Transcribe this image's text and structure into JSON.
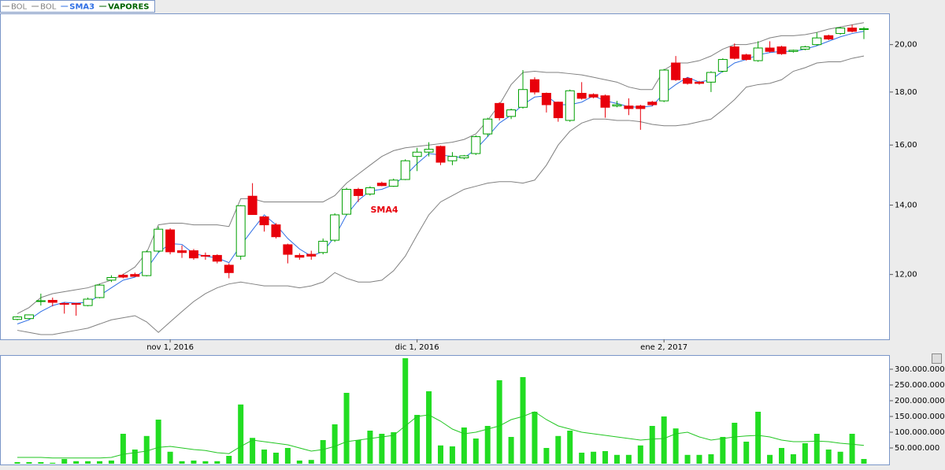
{
  "chart_data": [
    {
      "type": "candlestick",
      "name": "VAPORES",
      "color": "#00a000",
      "down_color": "#e8000b",
      "log_scale": true,
      "annotation": "SMA4",
      "categories": [
        null,
        null,
        null,
        null,
        null,
        null,
        null,
        null,
        null,
        null,
        null,
        null,
        null,
        "nov 1, 2016",
        null,
        null,
        null,
        null,
        null,
        null,
        null,
        null,
        null,
        null,
        null,
        null,
        null,
        null,
        null,
        null,
        null,
        null,
        null,
        null,
        "dic 1, 2016",
        null,
        null,
        null,
        null,
        null,
        null,
        null,
        null,
        null,
        null,
        null,
        null,
        null,
        null,
        null,
        null,
        null,
        null,
        null,
        null,
        "ene 2, 2017",
        null,
        null,
        null,
        null,
        null,
        null,
        null,
        null,
        null,
        null,
        null,
        null,
        null,
        null,
        null,
        null,
        null
      ],
      "open": [
        10.86,
        10.88,
        11.3,
        11.33,
        11.25,
        11.25,
        11.2,
        11.4,
        11.85,
        11.98,
        12.0,
        11.97,
        12.64,
        13.25,
        12.65,
        12.65,
        12.52,
        12.52,
        12.25,
        12.5,
        14.28,
        13.64,
        13.4,
        12.82,
        12.52,
        12.55,
        12.6,
        12.95,
        13.72,
        14.5,
        14.35,
        14.7,
        14.6,
        14.82,
        15.6,
        15.75,
        15.95,
        15.45,
        15.55,
        15.7,
        16.4,
        17.55,
        17.05,
        17.4,
        18.5,
        17.95,
        17.6,
        16.9,
        17.95,
        17.9,
        17.85,
        17.45,
        17.45,
        17.45,
        17.6,
        17.65,
        19.2,
        18.55,
        18.4,
        18.4,
        18.85,
        19.9,
        19.55,
        19.3,
        19.85,
        19.9,
        19.7,
        19.8,
        20.0,
        20.4,
        20.5,
        20.75,
        20.7
      ],
      "high": [
        10.94,
        10.98,
        11.5,
        11.4,
        11.28,
        11.27,
        11.4,
        11.75,
        11.98,
        12.02,
        12.05,
        12.66,
        13.35,
        13.3,
        12.8,
        12.7,
        12.6,
        12.55,
        12.3,
        14.0,
        14.7,
        13.65,
        13.45,
        12.85,
        12.58,
        12.65,
        13.0,
        13.75,
        14.55,
        14.55,
        14.6,
        14.75,
        14.85,
        15.5,
        15.9,
        16.1,
        15.98,
        15.75,
        15.65,
        16.35,
        17.0,
        17.6,
        17.35,
        18.9,
        18.6,
        17.98,
        17.62,
        18.1,
        18.4,
        17.95,
        17.9,
        17.65,
        17.75,
        17.5,
        17.65,
        18.95,
        19.5,
        18.6,
        18.45,
        18.85,
        19.4,
        20.05,
        19.6,
        20.15,
        20.15,
        19.95,
        19.78,
        19.95,
        20.55,
        20.45,
        20.8,
        20.9,
        20.8
      ],
      "low": [
        10.84,
        10.86,
        11.2,
        11.18,
        11.0,
        10.95,
        11.18,
        11.38,
        11.8,
        11.9,
        11.94,
        11.95,
        12.6,
        12.55,
        12.45,
        12.4,
        12.4,
        12.3,
        11.9,
        12.4,
        13.7,
        13.2,
        13.0,
        12.3,
        12.4,
        12.4,
        12.55,
        12.9,
        13.68,
        14.1,
        14.3,
        14.6,
        14.58,
        14.8,
        15.1,
        15.6,
        15.3,
        15.3,
        15.5,
        15.65,
        16.3,
        16.9,
        16.95,
        17.35,
        17.9,
        17.2,
        16.85,
        16.85,
        17.7,
        17.75,
        17.0,
        17.4,
        17.1,
        16.55,
        17.45,
        17.6,
        18.45,
        18.3,
        18.3,
        18.0,
        18.8,
        19.35,
        19.3,
        19.25,
        19.65,
        19.55,
        19.65,
        19.75,
        19.95,
        20.2,
        20.45,
        20.55,
        20.25
      ],
      "close": [
        10.92,
        10.97,
        11.32,
        11.28,
        11.24,
        11.23,
        11.36,
        11.72,
        11.92,
        11.93,
        11.95,
        12.62,
        13.27,
        12.62,
        12.6,
        12.45,
        12.51,
        12.36,
        12.05,
        13.98,
        13.71,
        13.4,
        13.05,
        12.55,
        12.47,
        12.5,
        12.92,
        13.7,
        14.5,
        14.3,
        14.55,
        14.62,
        14.8,
        15.45,
        15.75,
        15.85,
        15.4,
        15.6,
        15.62,
        16.3,
        16.95,
        17.0,
        17.3,
        18.1,
        18.0,
        17.5,
        17.0,
        18.05,
        17.75,
        17.8,
        17.4,
        17.5,
        17.35,
        17.35,
        17.5,
        18.9,
        18.5,
        18.35,
        18.35,
        18.8,
        19.35,
        19.4,
        19.35,
        19.85,
        19.7,
        19.6,
        19.75,
        19.9,
        20.3,
        20.25,
        20.75,
        20.6,
        20.72
      ],
      "series": [
        {
          "name": "BOL",
          "color": "#808080",
          "values": [
            11.0,
            11.15,
            11.4,
            11.5,
            11.55,
            11.6,
            11.65,
            11.75,
            11.85,
            12.0,
            12.2,
            12.6,
            13.4,
            13.45,
            13.45,
            13.4,
            13.4,
            13.4,
            13.35,
            14.2,
            14.2,
            14.1,
            14.1,
            14.1,
            14.1,
            14.1,
            14.1,
            14.3,
            14.7,
            15.0,
            15.3,
            15.6,
            15.8,
            15.9,
            15.95,
            16.0,
            16.05,
            16.1,
            16.2,
            16.4,
            16.9,
            17.5,
            18.3,
            18.8,
            18.85,
            18.8,
            18.8,
            18.75,
            18.7,
            18.6,
            18.5,
            18.4,
            18.2,
            18.1,
            18.1,
            18.9,
            19.2,
            19.2,
            19.3,
            19.5,
            19.8,
            20.0,
            20.0,
            20.1,
            20.3,
            20.4,
            20.4,
            20.45,
            20.55,
            20.7,
            20.8,
            20.9,
            21.0
          ]
        },
        {
          "name": "BOL",
          "color": "#808080",
          "values": [
            10.6,
            10.55,
            10.5,
            10.5,
            10.55,
            10.6,
            10.65,
            10.75,
            10.85,
            10.9,
            10.95,
            10.8,
            10.55,
            10.8,
            11.05,
            11.3,
            11.5,
            11.65,
            11.75,
            11.8,
            11.75,
            11.7,
            11.7,
            11.7,
            11.65,
            11.7,
            11.8,
            12.05,
            11.9,
            11.8,
            11.8,
            11.85,
            12.1,
            12.5,
            13.1,
            13.7,
            14.1,
            14.3,
            14.5,
            14.6,
            14.7,
            14.75,
            14.75,
            14.7,
            14.8,
            15.3,
            16.0,
            16.5,
            16.8,
            16.95,
            16.95,
            16.9,
            16.9,
            16.85,
            16.75,
            16.7,
            16.7,
            16.75,
            16.85,
            16.95,
            17.3,
            17.7,
            18.2,
            18.3,
            18.35,
            18.5,
            18.85,
            19.0,
            19.2,
            19.25,
            19.25,
            19.4,
            19.5
          ]
        },
        {
          "name": "SMA3",
          "color": "#2f6fe4",
          "values": [
            10.75,
            10.85,
            11.05,
            11.2,
            11.28,
            11.26,
            11.28,
            11.45,
            11.65,
            11.85,
            11.93,
            12.15,
            12.6,
            12.85,
            12.83,
            12.57,
            12.5,
            12.45,
            12.32,
            12.8,
            13.25,
            13.7,
            13.4,
            13.0,
            12.7,
            12.5,
            12.63,
            13.05,
            13.7,
            14.15,
            14.45,
            14.5,
            14.65,
            14.95,
            15.35,
            15.7,
            15.65,
            15.6,
            15.55,
            15.85,
            16.3,
            16.8,
            17.1,
            17.5,
            17.8,
            17.85,
            17.5,
            17.5,
            17.6,
            17.85,
            17.65,
            17.55,
            17.42,
            17.4,
            17.45,
            17.95,
            18.3,
            18.6,
            18.4,
            18.5,
            18.85,
            19.2,
            19.35,
            19.55,
            19.65,
            19.7,
            19.7,
            19.8,
            19.95,
            20.15,
            20.35,
            20.5,
            20.6
          ]
        }
      ],
      "ylim": [
        10.39,
        21.4
      ],
      "yticks": [
        {
          "value": 12,
          "label": "12,00"
        },
        {
          "value": 14,
          "label": "14,00"
        },
        {
          "value": 16,
          "label": "16,00"
        },
        {
          "value": 18,
          "label": "18,00"
        },
        {
          "value": 20,
          "label": "20,00"
        }
      ]
    },
    {
      "type": "bar",
      "color": "#22dd22",
      "values": [
        5000000,
        5000000,
        5000000,
        3000000,
        15000000,
        8000000,
        8000000,
        8000000,
        10000000,
        95000000,
        45000000,
        88000000,
        140000000,
        38000000,
        8000000,
        10000000,
        8000000,
        8000000,
        25000000,
        188000000,
        82000000,
        45000000,
        35000000,
        50000000,
        10000000,
        12000000,
        75000000,
        125000000,
        225000000,
        75000000,
        105000000,
        95000000,
        100000000,
        335000000,
        155000000,
        230000000,
        58000000,
        55000000,
        115000000,
        80000000,
        120000000,
        265000000,
        85000000,
        275000000,
        165000000,
        50000000,
        88000000,
        105000000,
        35000000,
        38000000,
        40000000,
        28000000,
        28000000,
        58000000,
        120000000,
        150000000,
        112000000,
        28000000,
        28000000,
        30000000,
        85000000,
        130000000,
        70000000,
        165000000,
        28000000,
        50000000,
        30000000,
        65000000,
        95000000,
        45000000,
        38000000,
        95000000,
        15000000
      ],
      "series": [
        {
          "color": "#22c622",
          "values": [
            20000000,
            20000000,
            20000000,
            18000000,
            18000000,
            18000000,
            18000000,
            18000000,
            20000000,
            30000000,
            35000000,
            40000000,
            52000000,
            55000000,
            50000000,
            45000000,
            42000000,
            35000000,
            32000000,
            55000000,
            75000000,
            70000000,
            65000000,
            60000000,
            50000000,
            40000000,
            45000000,
            55000000,
            70000000,
            75000000,
            80000000,
            85000000,
            90000000,
            120000000,
            150000000,
            155000000,
            135000000,
            110000000,
            95000000,
            100000000,
            110000000,
            120000000,
            140000000,
            150000000,
            165000000,
            140000000,
            120000000,
            110000000,
            100000000,
            95000000,
            90000000,
            85000000,
            80000000,
            75000000,
            78000000,
            80000000,
            95000000,
            100000000,
            85000000,
            75000000,
            80000000,
            85000000,
            88000000,
            90000000,
            85000000,
            75000000,
            70000000,
            70000000,
            72000000,
            70000000,
            65000000,
            62000000,
            58000000
          ]
        }
      ],
      "ylim": [
        0,
        342500000
      ],
      "yticks": [
        {
          "value": 50000000,
          "label": "50.000.000"
        },
        {
          "value": 100000000,
          "label": "100.000.000"
        },
        {
          "value": 150000000,
          "label": "150.000.000"
        },
        {
          "value": 200000000,
          "label": "200.000.000"
        },
        {
          "value": 250000000,
          "label": "250.000.000"
        },
        {
          "value": 300000000,
          "label": "300.000.000"
        }
      ]
    }
  ]
}
